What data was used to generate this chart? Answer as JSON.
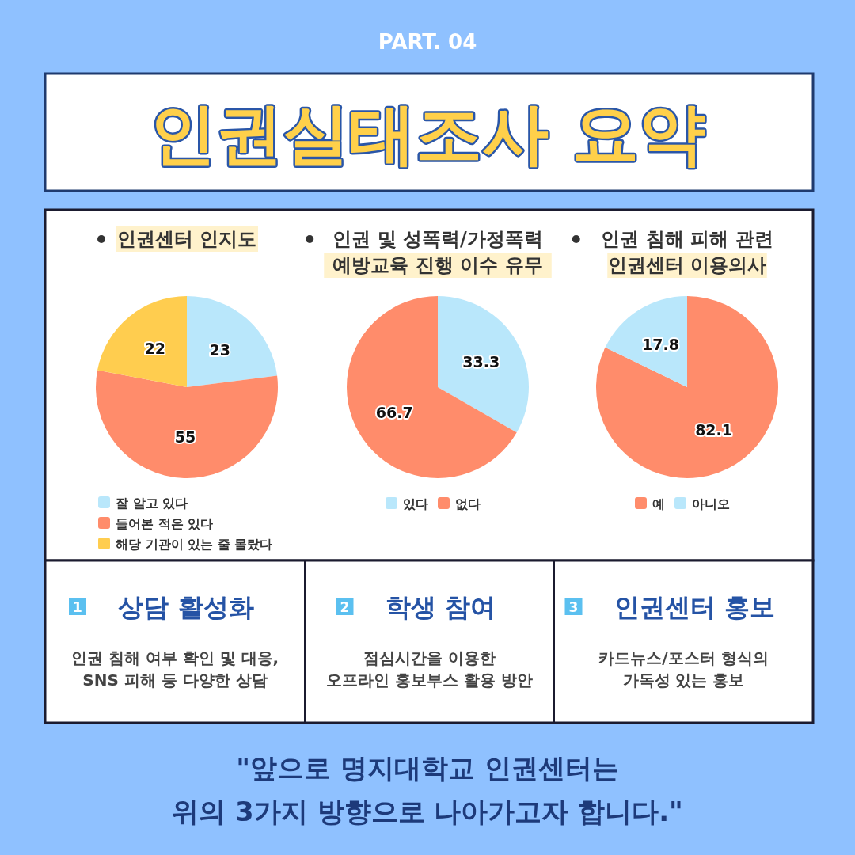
{
  "chart_data": [
    {
      "type": "other",
      "subtitle": "PART. 04",
      "title": "인권실태조사 요약"
    },
    {
      "type": "pie",
      "title": "인권센터 인지도",
      "categories": [
        "잘 알고 있다",
        "들어본 적은 있다",
        "해당 기관이 있는 줄 몰랐다"
      ],
      "values": [
        23,
        55,
        22
      ],
      "colors": [
        "#b9e7fb",
        "#ff8c6b",
        "#ffcd4f"
      ],
      "data_labels": true,
      "legend": "bottom"
    },
    {
      "type": "pie",
      "title": "인권 및 성폭력/가정폭력\n예방교육 진행 이수 유무",
      "categories": [
        "있다",
        "없다"
      ],
      "values": [
        33.3,
        66.7
      ],
      "colors": [
        "#b9e7fb",
        "#ff8c6b"
      ],
      "data_labels": true,
      "legend": "bottom"
    },
    {
      "type": "pie",
      "title": "인권 침해 피해 관련\n인권센터 이용의사",
      "categories": [
        "예",
        "아니오"
      ],
      "values": [
        82.1,
        17.8
      ],
      "colors": [
        "#ff8c6b",
        "#b9e7fb"
      ],
      "data_labels": true,
      "legend": "bottom"
    },
    {
      "type": "other",
      "subtitle": "1",
      "title": "상담 활성화",
      "annotations": [
        "인권 침해 여부 확인 및 대응,\nSNS 피해 등 다양한 상담"
      ]
    },
    {
      "type": "other",
      "subtitle": "2",
      "title": "학생 참여",
      "annotations": [
        "점심시간을 이용한\n오프라인 홍보부스 활용 방안"
      ]
    },
    {
      "type": "other",
      "subtitle": "3",
      "title": "인권센터 홍보",
      "annotations": [
        "카드뉴스/포스터 형식의\n가독성 있는 홍보"
      ]
    },
    {
      "type": "other",
      "annotations": [
        "\"앞으로 명지대학교 인권센터는\n위의 3가지 방향으로 나아가고자 합니다.\""
      ]
    }
  ]
}
